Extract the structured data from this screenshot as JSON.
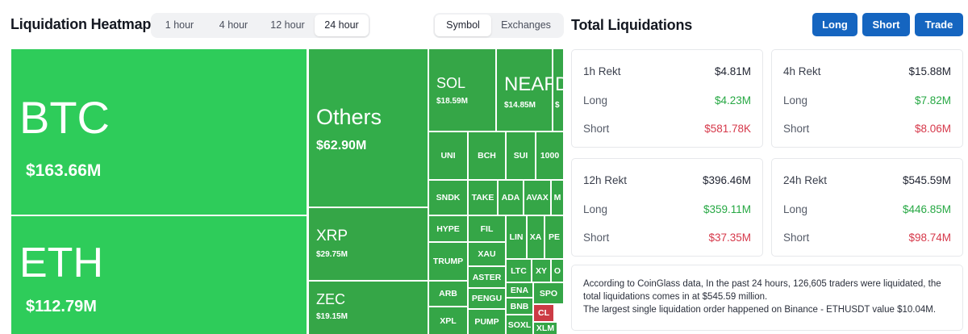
{
  "heatmap": {
    "title": "Liquidation Heatmap",
    "time_options": [
      "1 hour",
      "4 hour",
      "12 hour",
      "24 hour"
    ],
    "time_selected": "24 hour",
    "view_options": [
      "Symbol",
      "Exchanges"
    ],
    "view_selected": "Symbol",
    "colors": {
      "long_dominant": "#2ecc5a",
      "long_tile": "#35a647",
      "short_dominant": "#cc3b45"
    },
    "tiles": {
      "btc": {
        "name": "BTC",
        "value": "$163.66M"
      },
      "eth": {
        "name": "ETH",
        "value": "$112.79M"
      },
      "others": {
        "name": "Others",
        "value": "$62.90M"
      },
      "xrp": {
        "name": "XRP",
        "value": "$29.75M"
      },
      "zec": {
        "name": "ZEC",
        "value": "$19.15M"
      },
      "sol": {
        "name": "SOL",
        "value": "$18.59M"
      },
      "near": {
        "name": "NEAR",
        "value": "$14.85M"
      },
      "d": {
        "name": "D",
        "value": "$"
      },
      "uni": "UNI",
      "bch": "BCH",
      "sui": "SUI",
      "k1000": "1000",
      "sndk": "SNDK",
      "take": "TAKE",
      "ada": "ADA",
      "avax": "AVAX",
      "m": "M",
      "hype": "HYPE",
      "fil": "FIL",
      "lin": "LIN",
      "xa": "XA",
      "pe": "PE",
      "trump": "TRUMP",
      "xau": "XAU",
      "ltc": "LTC",
      "xy": "XY",
      "o": "O",
      "aster": "ASTER",
      "ena": "ENA",
      "arb": "ARB",
      "pengu": "PENGU",
      "spo": "SPO",
      "bnb": "BNB",
      "cl": "CL",
      "xpl": "XPL",
      "pump": "PUMP",
      "soxl": "SOXL",
      "xlm": "XLM"
    }
  },
  "total": {
    "title": "Total Liquidations",
    "buttons": {
      "long": "Long",
      "short": "Short",
      "trade": "Trade"
    },
    "cards": [
      {
        "label": "1h Rekt",
        "total": "$4.81M",
        "long_label": "Long",
        "long": "$4.23M",
        "short_label": "Short",
        "short": "$581.78K"
      },
      {
        "label": "4h Rekt",
        "total": "$15.88M",
        "long_label": "Long",
        "long": "$7.82M",
        "short_label": "Short",
        "short": "$8.06M"
      },
      {
        "label": "12h Rekt",
        "total": "$396.46M",
        "long_label": "Long",
        "long": "$359.11M",
        "short_label": "Short",
        "short": "$37.35M"
      },
      {
        "label": "24h Rekt",
        "total": "$545.59M",
        "long_label": "Long",
        "long": "$446.85M",
        "short_label": "Short",
        "short": "$98.74M"
      }
    ],
    "summary_line1": "According to CoinGlass data, In the past 24 hours, 126,605 traders were liquidated, the total liquidations comes in at $545.59 million.",
    "summary_line2": "The largest single liquidation order happened on Binance - ETHUSDT value $10.04M."
  }
}
